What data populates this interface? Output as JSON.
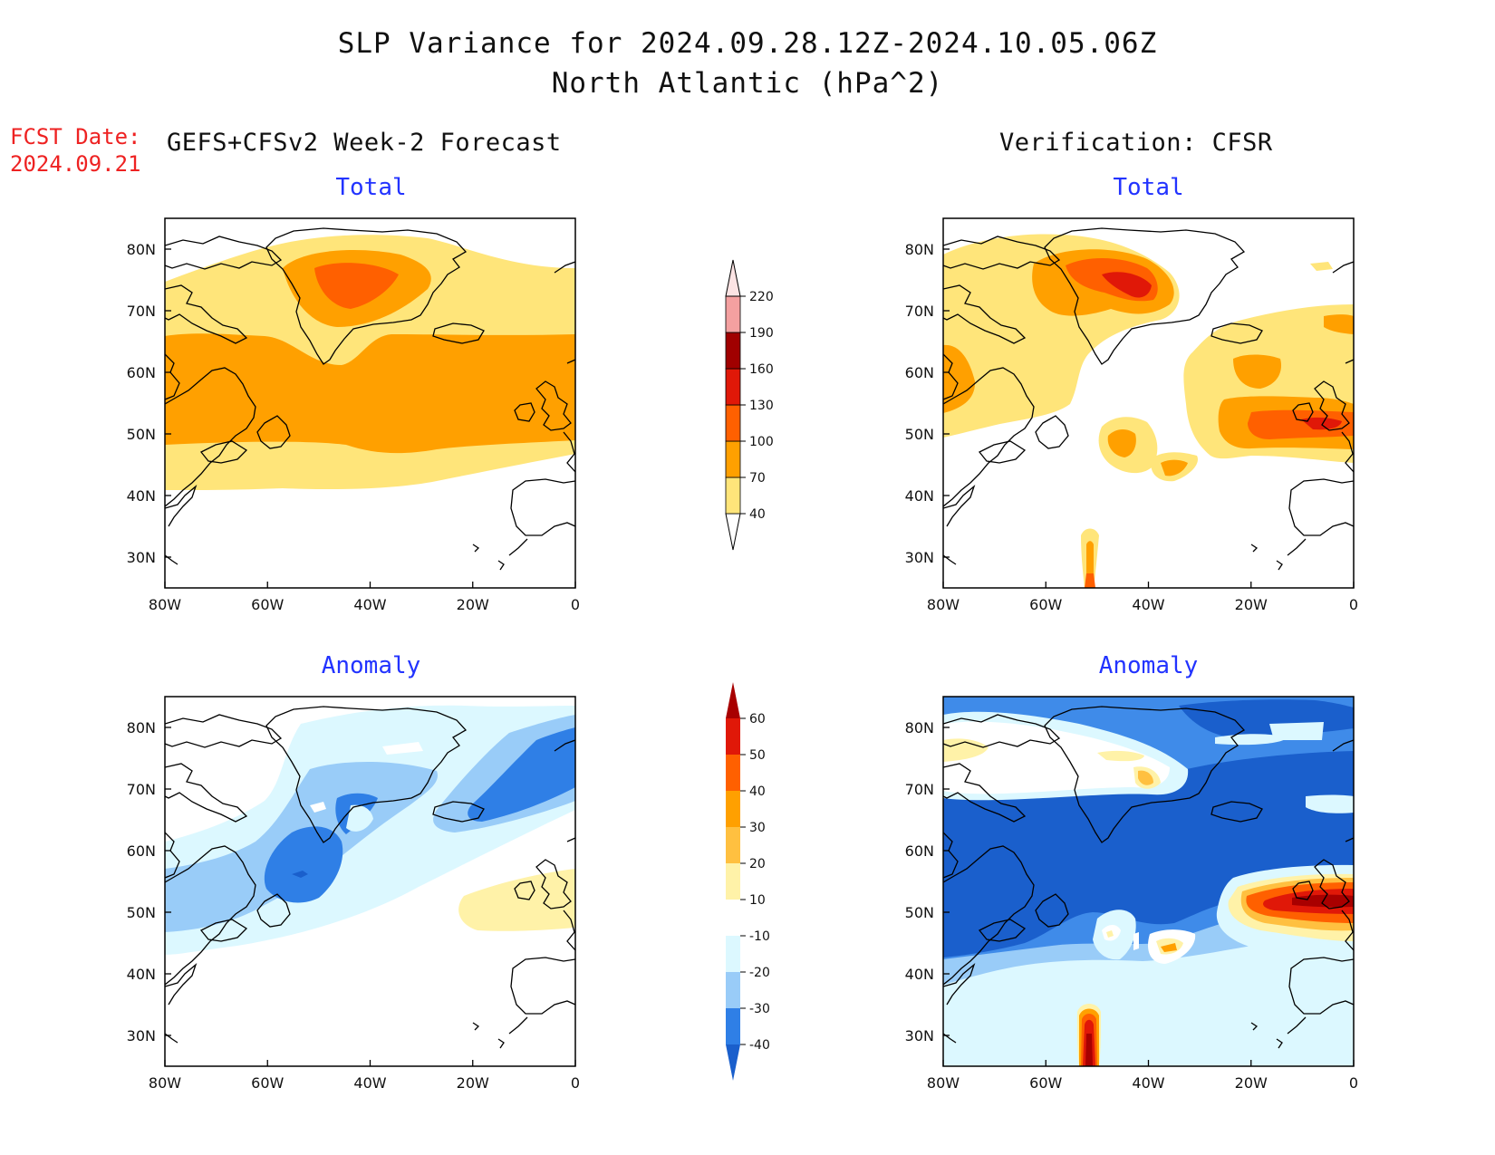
{
  "header": {
    "title_line1": "SLP Variance for 2024.09.28.12Z-2024.10.05.06Z",
    "title_line2": "North Atlantic (hPa^2)",
    "fcst_date_label": "FCST Date:",
    "fcst_date_value": "2024.09.21",
    "left_column": "GEFS+CFSv2 Week-2 Forecast",
    "right_column": "Verification: CFSR"
  },
  "panels": {
    "forecast_total": "Total",
    "verification_total": "Total",
    "forecast_anomaly": "Anomaly",
    "verification_anomaly": "Anomaly"
  },
  "axes": {
    "lat_labels": [
      "80N",
      "70N",
      "60N",
      "50N",
      "40N",
      "30N"
    ],
    "lat_values": [
      80,
      70,
      60,
      50,
      40,
      30
    ],
    "lon_labels": [
      "80W",
      "60W",
      "40W",
      "20W",
      "0"
    ],
    "lon_values": [
      -80,
      -60,
      -40,
      -20,
      0
    ],
    "lat_range": [
      25,
      85
    ],
    "lon_range": [
      -80,
      0
    ]
  },
  "legends": {
    "total": {
      "labels": [
        "220",
        "190",
        "160",
        "130",
        "100",
        "70",
        "40"
      ],
      "colors_bottom_to_top": [
        "#ffe57a",
        "#ffa000",
        "#ff6000",
        "#e01808",
        "#a00000",
        "#f4a0a0",
        "#fce4e4"
      ]
    },
    "anomaly": {
      "labels": [
        "60",
        "50",
        "40",
        "30",
        "20",
        "10",
        "-10",
        "-20",
        "-30",
        "-40"
      ],
      "colors_bottom_to_top": [
        "#1a5fcc",
        "#2f7fe6",
        "#99ccf8",
        "#dcf8ff",
        "#ffffff",
        "#fff2a8",
        "#ffc040",
        "#ffa000",
        "#ff6000",
        "#e01808",
        "#a80000"
      ]
    }
  },
  "colors": {
    "total": {
      "c40": "#ffe57a",
      "c70": "#ffa000",
      "c100": "#ff6000",
      "c130": "#e01808"
    },
    "anomaly": {
      "n10": "#dcf8ff",
      "n20": "#99ccf8",
      "n30": "#2f7fe6",
      "n40": "#1a5fcc",
      "p10": "#fff2a8",
      "p20": "#ffc040",
      "p30": "#ffa000",
      "p40": "#ff6000",
      "p50": "#e01808",
      "p60": "#a80000"
    }
  }
}
